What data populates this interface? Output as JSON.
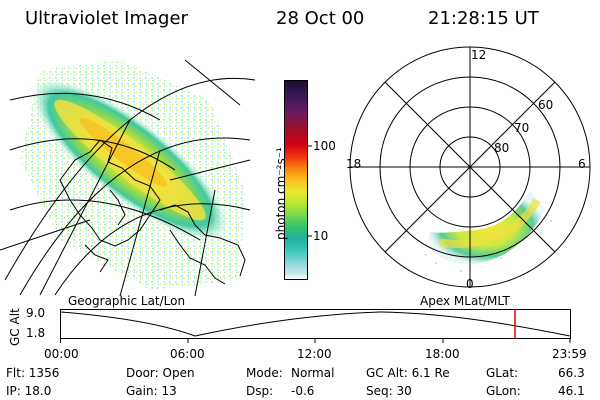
{
  "header": {
    "instrument": "Ultraviolet Imager",
    "date": "28 Oct 00",
    "time": "21:28:15 UT"
  },
  "left_panel": {
    "caption": "Geographic Lat/Lon"
  },
  "right_panel": {
    "caption": "Apex MLat/MLT",
    "mlt_labels": [
      "12",
      "18",
      "6",
      "0"
    ],
    "lat_labels": [
      "60",
      "70",
      "80"
    ]
  },
  "colorbar": {
    "unit_label": "photon cm⁻²s⁻¹",
    "tick_labels": [
      "100",
      "10"
    ],
    "colors_top_to_bottom": [
      "#1a0a2e",
      "#3b1a5a",
      "#6a1a60",
      "#9c1030",
      "#d00010",
      "#f03010",
      "#f88010",
      "#f8c020",
      "#e8e830",
      "#b8e830",
      "#70d850",
      "#30c070",
      "#20b0a0",
      "#40c8c0",
      "#90d8d8",
      "#c8e8e8",
      "#ffffff"
    ]
  },
  "altitude_plot": {
    "ylabel": "GC Alt",
    "yticks": [
      "9.0",
      "1.8"
    ],
    "xticks": [
      "00:00",
      "06:00",
      "12:00",
      "18:00",
      "23:59"
    ],
    "current_time_marker": "21:28"
  },
  "info": {
    "flt": "Flt: 1356",
    "ip": "IP: 18.0",
    "door": "Door: Open",
    "gain": "Gain: 13",
    "mode_label": "Mode:",
    "mode_value": "Normal",
    "dsp_label": "Dsp:",
    "dsp_value": "-0.6",
    "gcalt": "GC Alt: 6.1 Re",
    "seq": "Seq: 30",
    "glat_label": "GLat:",
    "glat_value": "66.3",
    "glon_label": "GLon:",
    "glon_value": "46.1"
  }
}
